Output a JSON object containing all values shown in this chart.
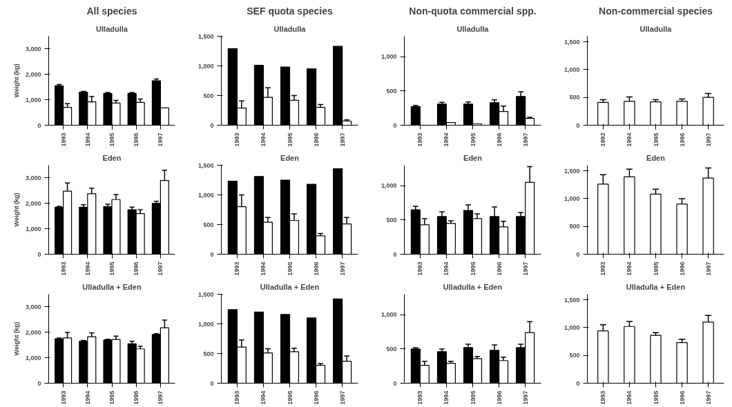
{
  "chart_data": [
    {
      "type": "bar",
      "title": "All species",
      "subtitle": "Ulladulla",
      "ylabel": "Weight (kg)",
      "categories": [
        "1993",
        "1994",
        "1995",
        "1996",
        "1997"
      ],
      "ylim": [
        0,
        3500
      ],
      "yticks": [
        0,
        {
          "value": 1000,
          "label": "1,000"
        },
        {
          "value": 2000,
          "label": "2,000"
        },
        {
          "value": 3000,
          "label": "3,000"
        }
      ],
      "series": [
        {
          "color": "#000000",
          "values": [
            1550,
            1300,
            1250,
            1250,
            1750
          ],
          "errors": [
            [
              1550,
              1600
            ],
            [
              1300,
              1330
            ],
            [
              1250,
              1290
            ],
            [
              1250,
              1290
            ],
            [
              1750,
              1820
            ]
          ]
        },
        {
          "color": "#ffffff",
          "values": [
            700,
            920,
            870,
            900,
            680
          ],
          "errors": [
            [
              700,
              850
            ],
            [
              920,
              1130
            ],
            [
              870,
              980
            ],
            [
              900,
              1030
            ],
            null
          ]
        }
      ]
    },
    {
      "type": "bar",
      "title": "SEF quota species",
      "subtitle": "Ulladulla",
      "categories": [
        "1993",
        "1994",
        "1995",
        "1996",
        "1997"
      ],
      "ylim": [
        0,
        1500
      ],
      "yticks": [
        0,
        500,
        {
          "value": 1000,
          "label": "1,000"
        },
        {
          "value": 1500,
          "label": "1,500"
        }
      ],
      "series": [
        {
          "color": "#000000",
          "values": [
            1290,
            1010,
            980,
            950,
            1330
          ]
        },
        {
          "color": "#ffffff",
          "values": [
            290,
            470,
            420,
            300,
            70
          ],
          "errors": [
            [
              290,
              410
            ],
            [
              470,
              630
            ],
            [
              420,
              500
            ],
            [
              300,
              350
            ],
            [
              70,
              90
            ]
          ]
        }
      ]
    },
    {
      "type": "bar",
      "title": "Non-quota commercial spp.",
      "subtitle": "Ulladulla",
      "categories": [
        "1993",
        "1994",
        "1995",
        "1996",
        "1997"
      ],
      "ylim": [
        0,
        1300
      ],
      "yticks": [
        0,
        500,
        {
          "value": 1000,
          "label": "1,000"
        }
      ],
      "series": [
        {
          "color": "#000000",
          "values": [
            270,
            310,
            310,
            330,
            420
          ],
          "errors": [
            [
              270,
              290
            ],
            [
              310,
              335
            ],
            [
              310,
              340
            ],
            [
              330,
              370
            ],
            [
              420,
              490
            ]
          ]
        },
        {
          "color": "#ffffff",
          "values": [
            null,
            40,
            20,
            200,
            100
          ],
          "errors": [
            null,
            null,
            null,
            [
              200,
              280
            ],
            [
              100,
              115
            ]
          ]
        }
      ]
    },
    {
      "type": "bar",
      "title": "Non-commercial species",
      "subtitle": "Ulladulla",
      "categories": [
        "1993",
        "1994",
        "1995",
        "1996",
        "1997"
      ],
      "ylim": [
        0,
        1600
      ],
      "yticks": [
        0,
        500,
        {
          "value": 1000,
          "label": "1,000"
        },
        {
          "value": 1500,
          "label": "1,500"
        }
      ],
      "series": [
        {
          "color": "#ffffff",
          "values": [
            410,
            430,
            420,
            430,
            500
          ],
          "errors": [
            [
              410,
              460
            ],
            [
              430,
              510
            ],
            [
              420,
              460
            ],
            [
              430,
              470
            ],
            [
              500,
              570
            ]
          ]
        }
      ]
    },
    {
      "type": "bar",
      "title": "Eden",
      "ylabel": "Weight (kg)",
      "categories": [
        "1993",
        "1994",
        "1995",
        "1996",
        "1997"
      ],
      "ylim": [
        0,
        3500
      ],
      "yticks": [
        0,
        {
          "value": 1000,
          "label": "1,000"
        },
        {
          "value": 2000,
          "label": "2,000"
        },
        {
          "value": 3000,
          "label": "3,000"
        }
      ],
      "series": [
        {
          "color": "#000000",
          "values": [
            1850,
            1850,
            1870,
            1750,
            2000
          ],
          "errors": [
            [
              1850,
              1880
            ],
            [
              1850,
              1950
            ],
            [
              1870,
              1970
            ],
            [
              1750,
              1850
            ],
            [
              2000,
              2080
            ]
          ]
        },
        {
          "color": "#ffffff",
          "values": [
            2480,
            2380,
            2150,
            1600,
            2900
          ],
          "errors": [
            [
              2480,
              2800
            ],
            [
              2380,
              2600
            ],
            [
              2150,
              2350
            ],
            [
              1600,
              1750
            ],
            [
              2900,
              3300
            ]
          ]
        }
      ]
    },
    {
      "type": "bar",
      "title": "Eden",
      "categories": [
        "1993",
        "1994",
        "1995",
        "1996",
        "1997"
      ],
      "ylim": [
        0,
        1500
      ],
      "yticks": [
        0,
        500,
        {
          "value": 1000,
          "label": "1,000"
        },
        {
          "value": 1500,
          "label": "1,500"
        }
      ],
      "series": [
        {
          "color": "#000000",
          "values": [
            1230,
            1310,
            1250,
            1180,
            1440
          ]
        },
        {
          "color": "#ffffff",
          "values": [
            800,
            540,
            570,
            310,
            510
          ],
          "errors": [
            [
              800,
              1000
            ],
            [
              540,
              620
            ],
            [
              570,
              680
            ],
            [
              310,
              350
            ],
            [
              510,
              620
            ]
          ]
        }
      ]
    },
    {
      "type": "bar",
      "title": "Eden",
      "categories": [
        "1993",
        "1994",
        "1995",
        "1996",
        "1997"
      ],
      "ylim": [
        0,
        1300
      ],
      "yticks": [
        0,
        500,
        {
          "value": 1000,
          "label": "1,000"
        }
      ],
      "series": [
        {
          "color": "#000000",
          "values": [
            650,
            550,
            640,
            550,
            550
          ],
          "errors": [
            [
              650,
              700
            ],
            [
              550,
              620
            ],
            [
              640,
              720
            ],
            [
              550,
              690
            ],
            [
              550,
              610
            ]
          ]
        },
        {
          "color": "#ffffff",
          "values": [
            430,
            450,
            520,
            400,
            1050
          ],
          "errors": [
            [
              430,
              520
            ],
            [
              450,
              490
            ],
            [
              520,
              590
            ],
            [
              400,
              480
            ],
            [
              1050,
              1280
            ]
          ]
        }
      ]
    },
    {
      "type": "bar",
      "title": "Eden",
      "categories": [
        "1993",
        "1994",
        "1995",
        "1996",
        "1997"
      ],
      "ylim": [
        0,
        1600
      ],
      "yticks": [
        0,
        500,
        {
          "value": 1000,
          "label": "1,000"
        },
        {
          "value": 1500,
          "label": "1,500"
        }
      ],
      "series": [
        {
          "color": "#ffffff",
          "values": [
            1260,
            1390,
            1080,
            900,
            1370
          ],
          "errors": [
            [
              1260,
              1430
            ],
            [
              1390,
              1530
            ],
            [
              1080,
              1170
            ],
            [
              900,
              1000
            ],
            [
              1370,
              1550
            ]
          ]
        }
      ]
    },
    {
      "type": "bar",
      "title": "Ulladulla + Eden",
      "ylabel": "Weight (kg)",
      "categories": [
        "1993",
        "1994",
        "1995",
        "1996",
        "1997"
      ],
      "ylim": [
        0,
        3500
      ],
      "yticks": [
        0,
        {
          "value": 1000,
          "label": "1,000"
        },
        {
          "value": 2000,
          "label": "2,000"
        },
        {
          "value": 3000,
          "label": "3,000"
        }
      ],
      "series": [
        {
          "color": "#000000",
          "values": [
            1750,
            1650,
            1700,
            1550,
            1920
          ],
          "errors": [
            [
              1750,
              1780
            ],
            [
              1650,
              1680
            ],
            [
              1700,
              1730
            ],
            [
              1550,
              1650
            ],
            [
              1920,
              1950
            ]
          ]
        },
        {
          "color": "#ffffff",
          "values": [
            1780,
            1830,
            1720,
            1350,
            2180
          ],
          "errors": [
            [
              1780,
              2000
            ],
            [
              1830,
              1980
            ],
            [
              1720,
              1850
            ],
            [
              1350,
              1450
            ],
            [
              2180,
              2480
            ]
          ]
        }
      ]
    },
    {
      "type": "bar",
      "title": "Ulladulla + Eden",
      "categories": [
        "1993",
        "1994",
        "1995",
        "1996",
        "1997"
      ],
      "ylim": [
        0,
        1500
      ],
      "yticks": [
        0,
        500,
        {
          "value": 1000,
          "label": "1,000"
        },
        {
          "value": 1500,
          "label": "1,500"
        }
      ],
      "series": [
        {
          "color": "#000000",
          "values": [
            1240,
            1200,
            1160,
            1100,
            1420
          ]
        },
        {
          "color": "#ffffff",
          "values": [
            610,
            510,
            530,
            300,
            370
          ],
          "errors": [
            [
              610,
              730
            ],
            [
              510,
              580
            ],
            [
              530,
              590
            ],
            [
              300,
              330
            ],
            [
              370,
              460
            ]
          ]
        }
      ]
    },
    {
      "type": "bar",
      "title": "Ulladulla + Eden",
      "categories": [
        "1993",
        "1994",
        "1995",
        "1996",
        "1997"
      ],
      "ylim": [
        0,
        1300
      ],
      "yticks": [
        0,
        500,
        {
          "value": 1000,
          "label": "1,000"
        }
      ],
      "series": [
        {
          "color": "#000000",
          "values": [
            500,
            460,
            520,
            480,
            520
          ],
          "errors": [
            [
              500,
              520
            ],
            [
              460,
              500
            ],
            [
              520,
              570
            ],
            [
              480,
              560
            ],
            [
              520,
              570
            ]
          ]
        },
        {
          "color": "#ffffff",
          "values": [
            260,
            290,
            360,
            330,
            740
          ],
          "errors": [
            [
              260,
              320
            ],
            [
              290,
              320
            ],
            [
              360,
              390
            ],
            [
              330,
              380
            ],
            [
              740,
              900
            ]
          ]
        }
      ]
    },
    {
      "type": "bar",
      "title": "Ulladulla + Eden",
      "categories": [
        "1993",
        "1994",
        "1995",
        "1996",
        "1997"
      ],
      "ylim": [
        0,
        1600
      ],
      "yticks": [
        0,
        500,
        {
          "value": 1000,
          "label": "1,000"
        },
        {
          "value": 1500,
          "label": "1,500"
        }
      ],
      "series": [
        {
          "color": "#ffffff",
          "values": [
            940,
            1020,
            860,
            730,
            1100
          ],
          "errors": [
            [
              940,
              1050
            ],
            [
              1020,
              1110
            ],
            [
              860,
              910
            ],
            [
              730,
              790
            ],
            [
              1100,
              1220
            ]
          ]
        }
      ]
    }
  ]
}
